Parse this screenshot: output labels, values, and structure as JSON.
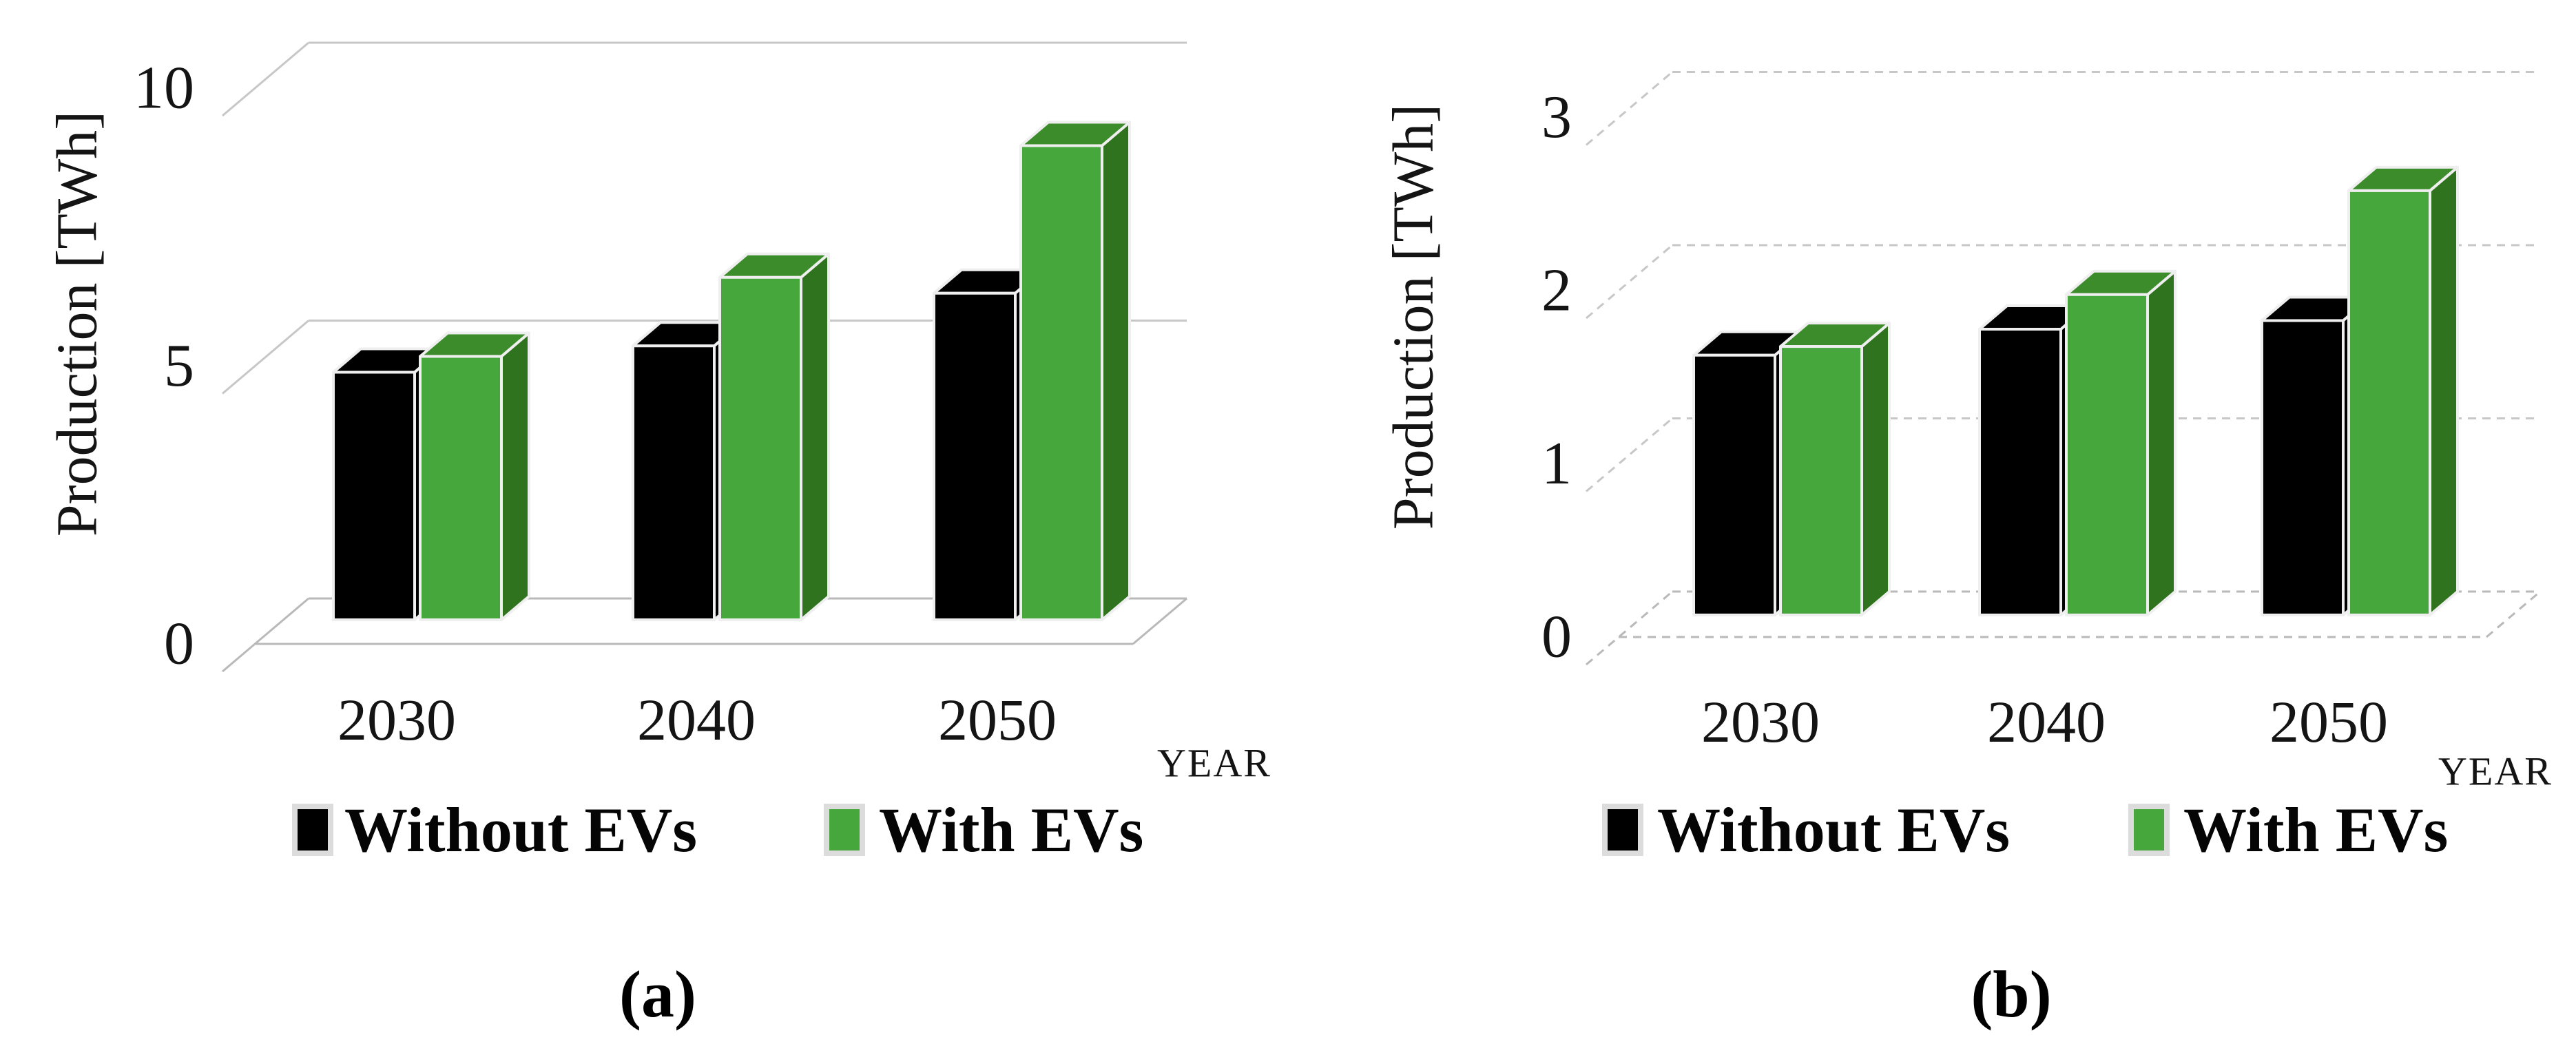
{
  "figure": {
    "captions": {
      "a": "(a)",
      "b": "(b)"
    }
  },
  "colors": {
    "green_front": "#45a73c",
    "green_top": "#3c8c2b",
    "green_side": "#30731f",
    "black_front": "#000000",
    "black_top": "#000000",
    "black_side": "#000000",
    "bar_edge": "#efefef",
    "grid_line": "#c7c7c7",
    "floor_line": "#b9b9b9",
    "swatch_frame": "#dcdcdc",
    "text": "#141414"
  },
  "chart_data": [
    {
      "type": "bar",
      "style": "3d-clustered-column",
      "panel": "(a)",
      "ylabel": "Production [TWh]",
      "xlabel": "YEAR",
      "categories": [
        "2030",
        "2040",
        "2050"
      ],
      "yticks": [
        0,
        5,
        10
      ],
      "ylim": [
        0,
        10.5
      ],
      "grid": "solid",
      "legend_position": "bottom",
      "series": [
        {
          "name": "Without EVs",
          "color": "#000000",
          "values": [
            4.7,
            5.2,
            6.2
          ]
        },
        {
          "name": "With EVs",
          "color": "#45a73c",
          "values": [
            5.0,
            6.5,
            9.0
          ]
        }
      ]
    },
    {
      "type": "bar",
      "style": "3d-clustered-column",
      "panel": "(b)",
      "ylabel": "Production [TWh]",
      "xlabel": "YEAR",
      "categories": [
        "2030",
        "2040",
        "2050"
      ],
      "yticks": [
        0,
        1,
        2,
        3
      ],
      "ylim": [
        0,
        3.2
      ],
      "grid": "dashed",
      "legend_position": "bottom",
      "series": [
        {
          "name": "Without EVs",
          "color": "#000000",
          "values": [
            1.5,
            1.65,
            1.7
          ]
        },
        {
          "name": "With EVs",
          "color": "#45a73c",
          "values": [
            1.55,
            1.85,
            2.45
          ]
        }
      ]
    }
  ]
}
